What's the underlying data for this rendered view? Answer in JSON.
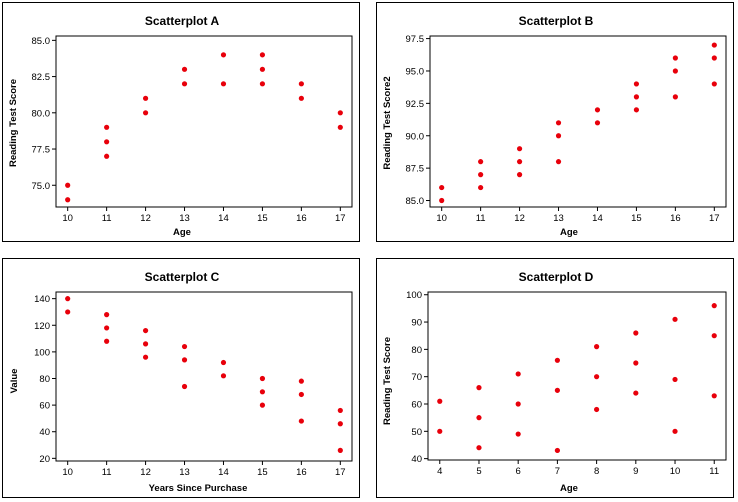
{
  "chart_data": [
    {
      "type": "scatter",
      "title": "Scatterplot A",
      "xlabel": "Age",
      "ylabel": "Reading Test Score",
      "xlim": [
        9.7,
        17.3
      ],
      "ylim": [
        73.5,
        85.3
      ],
      "xticks": [
        10,
        11,
        12,
        13,
        14,
        15,
        16,
        17
      ],
      "yticks": [
        75.0,
        77.5,
        80.0,
        82.5,
        85.0
      ],
      "ytick_labels": [
        "75.0",
        "77.5",
        "80.0",
        "82.5",
        "85.0"
      ],
      "color": "#e8000b",
      "points": [
        [
          10,
          75
        ],
        [
          10,
          74
        ],
        [
          11,
          79
        ],
        [
          11,
          78
        ],
        [
          11,
          77
        ],
        [
          12,
          81
        ],
        [
          12,
          80
        ],
        [
          13,
          83
        ],
        [
          13,
          82
        ],
        [
          14,
          84
        ],
        [
          14,
          82
        ],
        [
          15,
          84
        ],
        [
          15,
          83
        ],
        [
          15,
          82
        ],
        [
          16,
          82
        ],
        [
          16,
          81
        ],
        [
          17,
          80
        ],
        [
          17,
          79
        ]
      ]
    },
    {
      "type": "scatter",
      "title": "Scatterplot B",
      "xlabel": "Age",
      "ylabel": "Reading Test Score2",
      "xlim": [
        9.7,
        17.3
      ],
      "ylim": [
        84.5,
        97.7
      ],
      "xticks": [
        10,
        11,
        12,
        13,
        14,
        15,
        16,
        17
      ],
      "yticks": [
        85.0,
        87.5,
        90.0,
        92.5,
        95.0,
        97.5
      ],
      "ytick_labels": [
        "85.0",
        "87.5",
        "90.0",
        "92.5",
        "95.0",
        "97.5"
      ],
      "color": "#e8000b",
      "points": [
        [
          10,
          86
        ],
        [
          10,
          85
        ],
        [
          11,
          88
        ],
        [
          11,
          87
        ],
        [
          11,
          86
        ],
        [
          12,
          89
        ],
        [
          12,
          88
        ],
        [
          12,
          87
        ],
        [
          13,
          91
        ],
        [
          13,
          90
        ],
        [
          13,
          88
        ],
        [
          14,
          92
        ],
        [
          14,
          91
        ],
        [
          15,
          94
        ],
        [
          15,
          93
        ],
        [
          15,
          92
        ],
        [
          16,
          96
        ],
        [
          16,
          95
        ],
        [
          16,
          93
        ],
        [
          17,
          97
        ],
        [
          17,
          96
        ],
        [
          17,
          94
        ]
      ]
    },
    {
      "type": "scatter",
      "title": "Scatterplot C",
      "xlabel": "Years Since Purchase",
      "ylabel": "Value",
      "xlim": [
        9.7,
        17.3
      ],
      "ylim": [
        18,
        145
      ],
      "xticks": [
        10,
        11,
        12,
        13,
        14,
        15,
        16,
        17
      ],
      "yticks": [
        20,
        40,
        60,
        80,
        100,
        120,
        140
      ],
      "ytick_labels": [
        "20",
        "40",
        "60",
        "80",
        "100",
        "120",
        "140"
      ],
      "color": "#e8000b",
      "points": [
        [
          10,
          140
        ],
        [
          10,
          130
        ],
        [
          11,
          128
        ],
        [
          11,
          118
        ],
        [
          11,
          108
        ],
        [
          12,
          116
        ],
        [
          12,
          106
        ],
        [
          12,
          96
        ],
        [
          13,
          104
        ],
        [
          13,
          94
        ],
        [
          13,
          74
        ],
        [
          14,
          92
        ],
        [
          14,
          82
        ],
        [
          15,
          80
        ],
        [
          15,
          70
        ],
        [
          15,
          60
        ],
        [
          16,
          78
        ],
        [
          16,
          68
        ],
        [
          16,
          48
        ],
        [
          17,
          56
        ],
        [
          17,
          46
        ],
        [
          17,
          26
        ]
      ]
    },
    {
      "type": "scatter",
      "title": "Scatterplot D",
      "xlabel": "Age",
      "ylabel": "Reading Test Score",
      "xlim": [
        3.7,
        11.3
      ],
      "ylim": [
        39.5,
        101
      ],
      "xticks": [
        4,
        5,
        6,
        7,
        8,
        9,
        10,
        11
      ],
      "yticks": [
        40,
        50,
        60,
        70,
        80,
        90,
        100
      ],
      "ytick_labels": [
        "40",
        "50",
        "60",
        "70",
        "80",
        "90",
        "100"
      ],
      "color": "#e8000b",
      "points": [
        [
          4,
          61
        ],
        [
          4,
          50
        ],
        [
          5,
          66
        ],
        [
          5,
          55
        ],
        [
          5,
          44
        ],
        [
          6,
          71
        ],
        [
          6,
          60
        ],
        [
          6,
          49
        ],
        [
          7,
          76
        ],
        [
          7,
          65
        ],
        [
          7,
          43
        ],
        [
          8,
          81
        ],
        [
          8,
          70
        ],
        [
          8,
          58
        ],
        [
          9,
          86
        ],
        [
          9,
          75
        ],
        [
          9,
          64
        ],
        [
          10,
          91
        ],
        [
          10,
          69
        ],
        [
          10,
          50
        ],
        [
          11,
          96
        ],
        [
          11,
          85
        ],
        [
          11,
          63
        ]
      ]
    }
  ]
}
